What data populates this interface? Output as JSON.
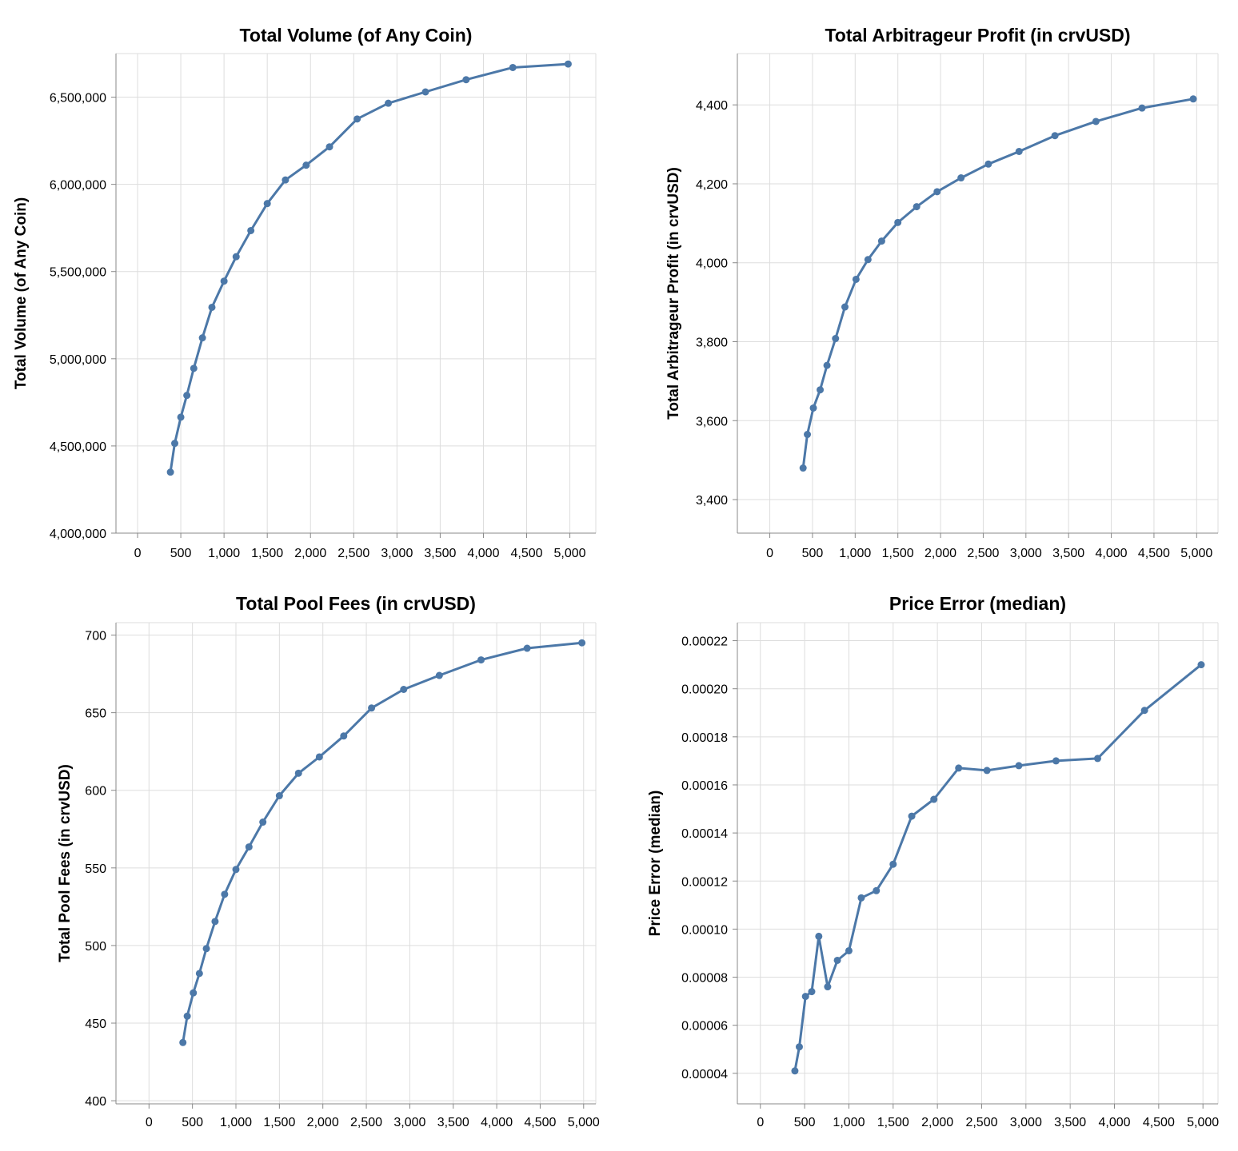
{
  "chart_data": [
    {
      "type": "line",
      "title": "Total Volume (of Any Coin)",
      "xlabel": "",
      "ylabel": "Total Volume (of Any Coin)",
      "xlim": [
        -250,
        5300
      ],
      "ylim": [
        4000000,
        6750000
      ],
      "x_ticks": [
        0,
        500,
        1000,
        1500,
        2000,
        2500,
        3000,
        3500,
        4000,
        4500,
        5000
      ],
      "x_tick_labels": [
        "0",
        "500",
        "1,000",
        "1,500",
        "2,000",
        "2,500",
        "3,000",
        "3,500",
        "4,000",
        "4,500",
        "5,000"
      ],
      "y_ticks": [
        4000000,
        4500000,
        5000000,
        5500000,
        6000000,
        6500000
      ],
      "y_tick_labels": [
        "4,000,000",
        "4,500,000",
        "5,000,000",
        "5,500,000",
        "6,000,000",
        "6,500,000"
      ],
      "grid": true,
      "color": "#4c78a8",
      "x": [
        380,
        430,
        500,
        570,
        650,
        750,
        860,
        1000,
        1140,
        1310,
        1500,
        1710,
        1950,
        2220,
        2540,
        2900,
        3330,
        3800,
        4340,
        4980
      ],
      "y": [
        4350000,
        4515000,
        4665000,
        4790000,
        4945000,
        5120000,
        5295000,
        5445000,
        5585000,
        5735000,
        5890000,
        6025000,
        6110000,
        6215000,
        6375000,
        6465000,
        6530000,
        6600000,
        6670000,
        6690000
      ]
    },
    {
      "type": "line",
      "title": "Total Arbitrageur Profit (in crvUSD)",
      "xlabel": "",
      "ylabel": "Total Arbitrageur Profit (in crvUSD)",
      "xlim": [
        -380,
        5250
      ],
      "ylim": [
        3315,
        4530
      ],
      "x_ticks": [
        0,
        500,
        1000,
        1500,
        2000,
        2500,
        3000,
        3500,
        4000,
        4500,
        5000
      ],
      "x_tick_labels": [
        "0",
        "500",
        "1,000",
        "1,500",
        "2,000",
        "2,500",
        "3,000",
        "3,500",
        "4,000",
        "4,500",
        "5,000"
      ],
      "y_ticks": [
        3400,
        3600,
        3800,
        4000,
        4200,
        4400
      ],
      "y_tick_labels": [
        "3,400",
        "3,600",
        "3,800",
        "4,000",
        "4,200",
        "4,400"
      ],
      "grid": true,
      "color": "#4c78a8",
      "x": [
        390,
        440,
        510,
        590,
        670,
        770,
        880,
        1010,
        1150,
        1310,
        1500,
        1720,
        1960,
        2240,
        2560,
        2920,
        3340,
        3820,
        4360,
        4960
      ],
      "y": [
        3480,
        3565,
        3632,
        3678,
        3740,
        3808,
        3888,
        3958,
        4008,
        4055,
        4102,
        4142,
        4180,
        4215,
        4250,
        4282,
        4322,
        4358,
        4392,
        4415
      ]
    },
    {
      "type": "line",
      "title": "Total Pool Fees (in crvUSD)",
      "xlabel": "",
      "ylabel": "Total Pool Fees (in crvUSD)",
      "xlim": [
        -380,
        5140
      ],
      "ylim": [
        398,
        708
      ],
      "x_ticks": [
        0,
        500,
        1000,
        1500,
        2000,
        2500,
        3000,
        3500,
        4000,
        4500,
        5000
      ],
      "x_tick_labels": [
        "0",
        "500",
        "1,000",
        "1,500",
        "2,000",
        "2,500",
        "3,000",
        "3,500",
        "4,000",
        "4,500",
        "5,000"
      ],
      "y_ticks": [
        400,
        450,
        500,
        550,
        600,
        650,
        700
      ],
      "y_tick_labels": [
        "400",
        "450",
        "500",
        "550",
        "600",
        "650",
        "700"
      ],
      "grid": true,
      "color": "#4c78a8",
      "x": [
        390,
        440,
        510,
        580,
        660,
        760,
        870,
        1000,
        1150,
        1310,
        1500,
        1720,
        1960,
        2240,
        2560,
        2930,
        3340,
        3820,
        4350,
        4980
      ],
      "y": [
        437.5,
        454.5,
        469.5,
        482,
        498,
        515.5,
        533,
        549,
        563.5,
        579.5,
        596.5,
        611,
        621.5,
        635,
        653,
        665,
        674,
        684,
        691.5,
        695
      ]
    },
    {
      "type": "line",
      "title": "Price Error (median)",
      "xlabel": "",
      "ylabel": "Price Error (median)",
      "xlim": [
        -260,
        5170
      ],
      "ylim": [
        2.73e-05,
        0.0002275
      ],
      "x_ticks": [
        0,
        500,
        1000,
        1500,
        2000,
        2500,
        3000,
        3500,
        4000,
        4500,
        5000
      ],
      "x_tick_labels": [
        "0",
        "500",
        "1,000",
        "1,500",
        "2,000",
        "2,500",
        "3,000",
        "3,500",
        "4,000",
        "4,500",
        "5,000"
      ],
      "y_ticks": [
        4e-05,
        6e-05,
        8e-05,
        0.0001,
        0.00012,
        0.00014,
        0.00016,
        0.00018,
        0.0002,
        0.00022
      ],
      "y_tick_labels": [
        "0.00004",
        "0.00006",
        "0.00008",
        "0.00010",
        "0.00012",
        "0.00014",
        "0.00016",
        "0.00018",
        "0.00020",
        "0.00022"
      ],
      "grid": true,
      "color": "#4c78a8",
      "x": [
        390,
        440,
        510,
        580,
        660,
        760,
        870,
        1000,
        1140,
        1310,
        1500,
        1710,
        1960,
        2240,
        2560,
        2920,
        3340,
        3810,
        4340,
        4980
      ],
      "y": [
        4.1e-05,
        5.1e-05,
        7.2e-05,
        7.4e-05,
        9.7e-05,
        7.6e-05,
        8.7e-05,
        9.1e-05,
        0.000113,
        0.000116,
        0.000127,
        0.000147,
        0.000154,
        0.000167,
        0.000166,
        0.000168,
        0.00017,
        0.000171,
        0.000191,
        0.00021
      ]
    }
  ]
}
